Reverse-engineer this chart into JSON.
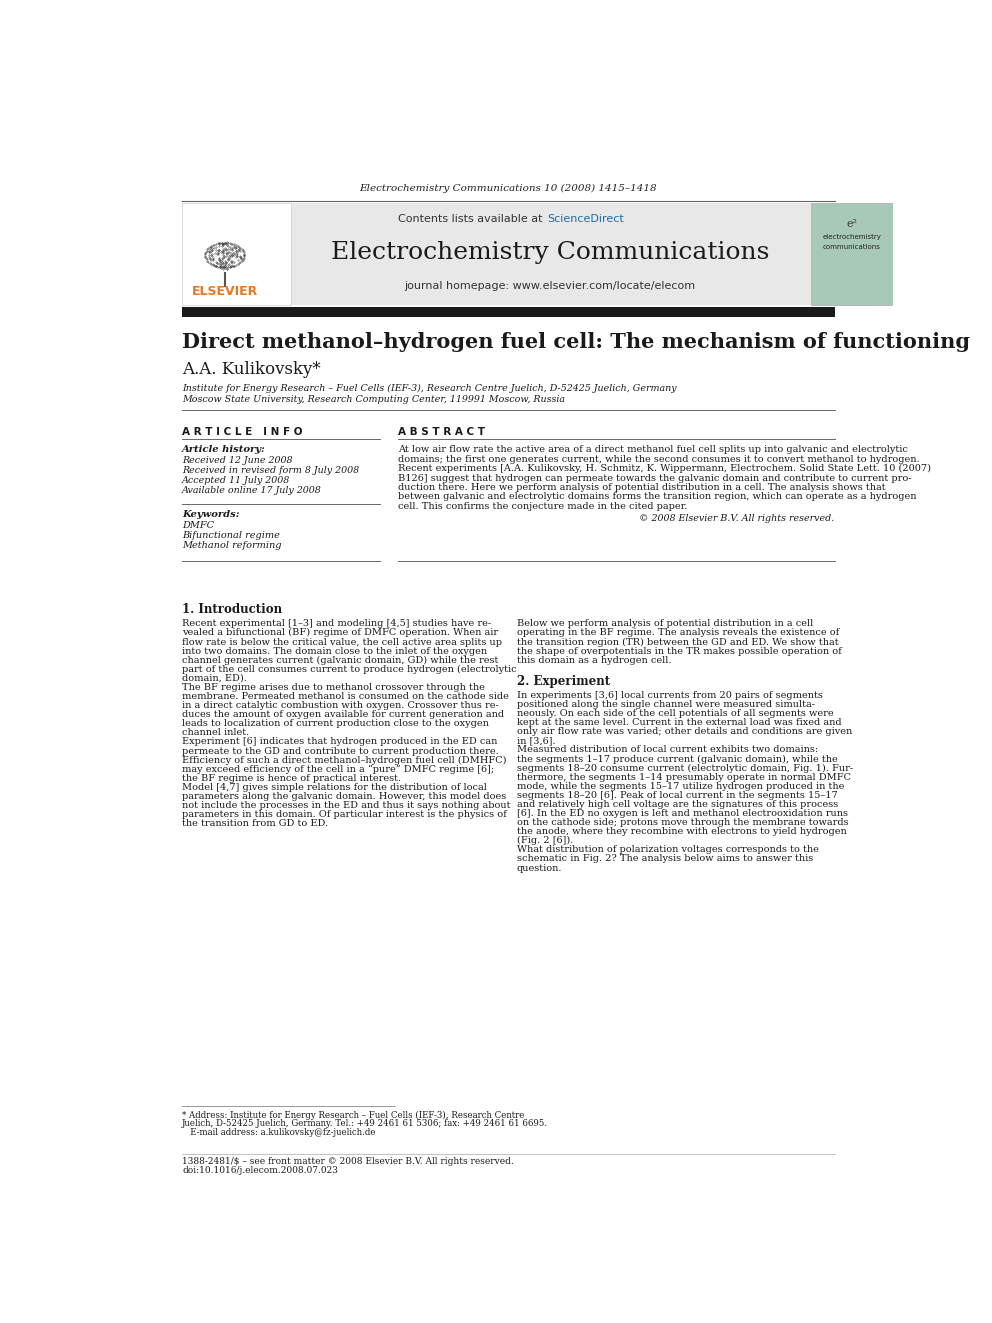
{
  "bg_color": "#ffffff",
  "top_header_text": "Electrochemistry Communications 10 (2008) 1415–1418",
  "header_bg": "#e8e8e8",
  "header_journal_title": "Electrochemistry Communications",
  "header_contents": "Contents lists available at ScienceDirect",
  "header_homepage": "journal homepage: www.elsevier.com/locate/elecom",
  "black_bar_color": "#1a1a1a",
  "article_title": "Direct methanol–hydrogen fuel cell: The mechanism of functioning",
  "author": "A.A. Kulikovsky*",
  "affil1": "Institute for Energy Research – Fuel Cells (IEF-3), Research Centre Juelich, D-52425 Juelich, Germany",
  "affil2": "Moscow State University, Research Computing Center, 119991 Moscow, Russia",
  "article_info_header": "A R T I C L E   I N F O",
  "abstract_header": "A B S T R A C T",
  "article_history_label": "Article history:",
  "received": "Received 12 June 2008",
  "received_revised": "Received in revised form 8 July 2008",
  "accepted": "Accepted 11 July 2008",
  "available": "Available online 17 July 2008",
  "keywords_label": "Keywords:",
  "keyword1": "DMFC",
  "keyword2": "Bifunctional regime",
  "keyword3": "Methanol reforming",
  "abstract_text": "At low air flow rate the active area of a direct methanol fuel cell splits up into galvanic and electrolytic\ndomains; the first one generates current, while the second consumes it to convert methanol to hydrogen.\nRecent experiments [A.A. Kulikovsky, H. Schmitz, K. Wippermann, Electrochem. Solid State Lett. 10 (2007)\nB126] suggest that hydrogen can permeate towards the galvanic domain and contribute to current pro-\nduction there. Here we perform analysis of potential distribution in a cell. The analysis shows that\nbetween galvanic and electrolytic domains forms the transition region, which can operate as a hydrogen\ncell. This confirms the conjecture made in the cited paper.",
  "copyright": "© 2008 Elsevier B.V. All rights reserved.",
  "section1_title": "1. Introduction",
  "section1_col1": "Recent experimental [1–3] and modeling [4,5] studies have re-\nvealed a bifunctional (BF) regime of DMFC operation. When air\nflow rate is below the critical value, the cell active area splits up\ninto two domains. The domain close to the inlet of the oxygen\nchannel generates current (galvanic domain, GD) while the rest\npart of the cell consumes current to produce hydrogen (electrolytic\ndomain, ED).\n    The BF regime arises due to methanol crossover through the\nmembrane. Permeated methanol is consumed on the cathode side\nin a direct catalytic combustion with oxygen. Crossover thus re-\nduces the amount of oxygen available for current generation and\nleads to localization of current production close to the oxygen\nchannel inlet.\n    Experiment [6] indicates that hydrogen produced in the ED can\npermeate to the GD and contribute to current production there.\nEfficiency of such a direct methanol–hydrogen fuel cell (DMHFC)\nmay exceed efficiency of the cell in a “pure” DMFC regime [6];\nthe BF regime is hence of practical interest.\n    Model [4,7] gives simple relations for the distribution of local\nparameters along the galvanic domain. However, this model does\nnot include the processes in the ED and thus it says nothing about\nparameters in this domain. Of particular interest is the physics of\nthe transition from GD to ED.",
  "section1_col2": "Below we perform analysis of potential distribution in a cell\noperating in the BF regime. The analysis reveals the existence of\nthe transition region (TR) between the GD and ED. We show that\nthe shape of overpotentials in the TR makes possible operation of\nthis domain as a hydrogen cell.",
  "section2_title": "2. Experiment",
  "section2_col2": "In experiments [3,6] local currents from 20 pairs of segments\npositioned along the single channel were measured simulta-\nneously. On each side of the cell potentials of all segments were\nkept at the same level. Current in the external load was fixed and\nonly air flow rate was varied; other details and conditions are given\nin [3,6].\n    Measured distribution of local current exhibits two domains:\nthe segments 1–17 produce current (galvanic domain), while the\nsegments 18–20 consume current (electrolytic domain, Fig. 1). Fur-\nthermore, the segments 1–14 presumably operate in normal DMFC\nmode, while the segments 15–17 utilize hydrogen produced in the\nsegments 18–20 [6]. Peak of local current in the segments 15–17\nand relatively high cell voltage are the signatures of this process\n[6]. In the ED no oxygen is left and methanol electrooxidation runs\non the cathode side; protons move through the membrane towards\nthe anode, where they recombine with electrons to yield hydrogen\n(Fig. 2 [6]).\n    What distribution of polarization voltages corresponds to the\nschematic in Fig. 2? The analysis below aims to answer this\nquestion.",
  "footnote_star": "* Address: Institute for Energy Research – Fuel Cells (IEF-3), Research Centre\nJuelich, D-52425 Juelich, Germany. Tel.: +49 2461 61 5306; fax: +49 2461 61 6695.\n   E-mail address: a.kulikovsky@fz-juelich.de",
  "footer_line1": "1388-2481/$ – see front matter © 2008 Elsevier B.V. All rights reserved.",
  "footer_line2": "doi:10.1016/j.elecom.2008.07.023",
  "elsevier_color": "#e87722",
  "sciencedirect_color": "#1b6ca8",
  "link_color": "#1b6ca8"
}
